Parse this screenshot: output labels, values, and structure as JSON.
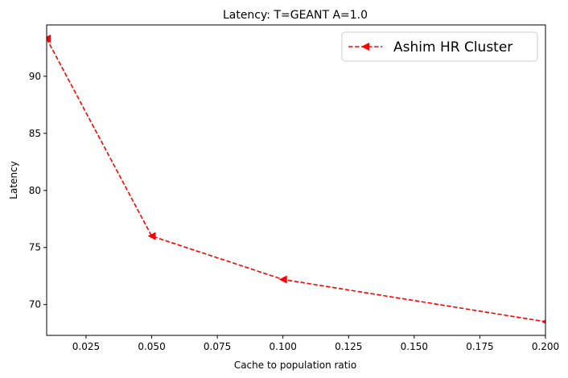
{
  "chart_data": {
    "type": "line",
    "title": "Latency: T=GEANT A=1.0",
    "xlabel": "Cache to population ratio",
    "ylabel": "Latency",
    "xlim": [
      0.01,
      0.2
    ],
    "ylim": [
      67.3,
      94.5
    ],
    "xticks": [
      0.025,
      0.05,
      0.075,
      0.1,
      0.125,
      0.15,
      0.175,
      0.2
    ],
    "xtick_labels": [
      "0.025",
      "0.050",
      "0.075",
      "0.100",
      "0.125",
      "0.150",
      "0.175",
      "0.200"
    ],
    "yticks": [
      70,
      75,
      80,
      85,
      90
    ],
    "ytick_labels": [
      "70",
      "75",
      "80",
      "85",
      "90"
    ],
    "grid": false,
    "legend_position": "top-right",
    "series": [
      {
        "name": "Ashim HR Cluster",
        "color": "#ff0000",
        "line_style": "dashed",
        "marker": "triangle-left",
        "x": [
          0.01,
          0.05,
          0.1,
          0.2
        ],
        "y": [
          93.3,
          76.0,
          72.2,
          68.5
        ]
      }
    ]
  }
}
